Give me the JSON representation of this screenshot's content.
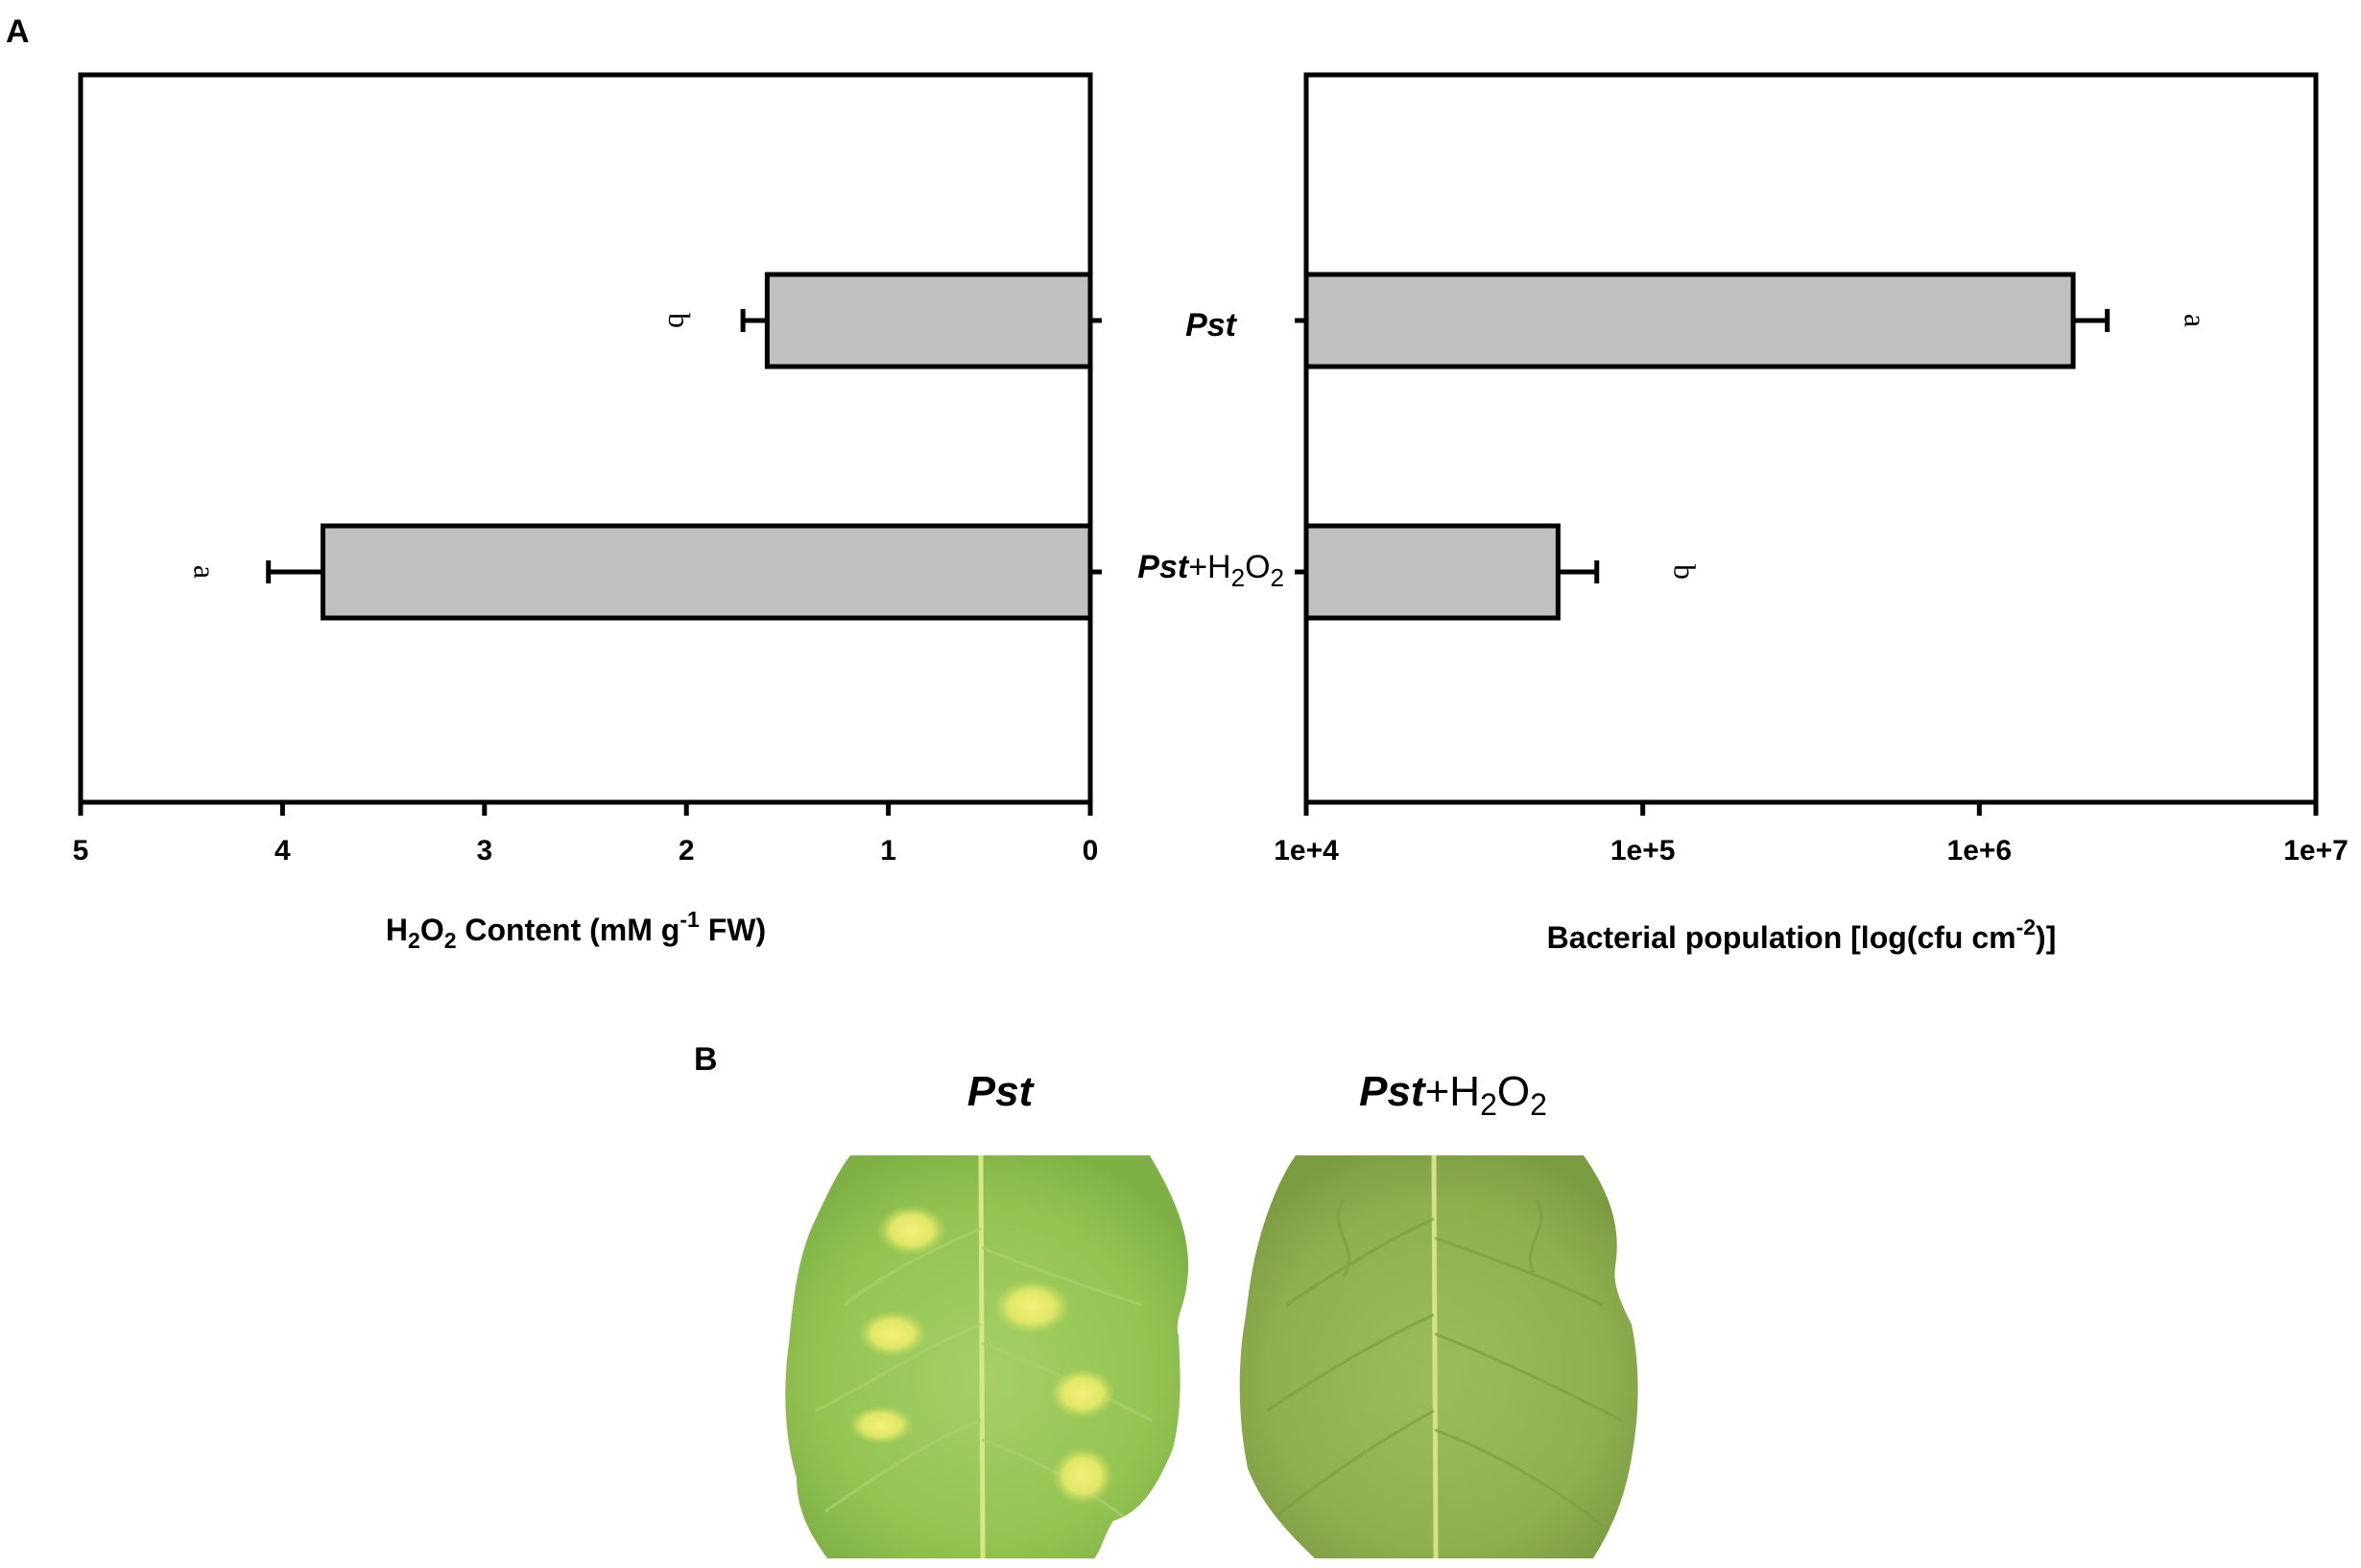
{
  "panel_a_label": "A",
  "panel_b_label": "B",
  "chart_data": [
    {
      "type": "bar",
      "orientation": "horizontal",
      "x_reversed": true,
      "categories": [
        "Pst",
        "Pst+H2O2"
      ],
      "values": [
        1.6,
        3.8
      ],
      "errors": [
        0.12,
        0.27
      ],
      "significance_letters": [
        "b",
        "a"
      ],
      "xlabel": "H2O2 Content (mM g-1 FW)",
      "xlabel_parts": {
        "p1": "H",
        "sub1": "2",
        "p2": "O",
        "sub2": "2",
        "p3": " Content (mM g",
        "sup": "-1",
        "p4": " FW)"
      },
      "xlim": [
        0,
        5
      ],
      "xticks": [
        "5",
        "4",
        "3",
        "2",
        "1",
        "0"
      ],
      "grid": false,
      "bar_color": "#c0c0c0"
    },
    {
      "type": "bar",
      "orientation": "horizontal",
      "x_scale": "log",
      "categories": [
        "Pst",
        "Pst+H2O2"
      ],
      "category_labels": [
        {
          "italic": "Pst",
          "rest": ""
        },
        {
          "italic": "Pst",
          "rest": "+H",
          "sub1": "2",
          "rest2": "O",
          "sub2": "2"
        }
      ],
      "values": [
        1900000,
        56000
      ],
      "error_upper": [
        2400000,
        73000
      ],
      "significance_letters": [
        "a",
        "b"
      ],
      "xlabel": "Bacterial population [log(cfu cm-2)]",
      "xlabel_parts": {
        "p1": "Bacterial population [log(cfu cm",
        "sup": "-2",
        "p2": ")]"
      },
      "xlim": [
        10000,
        10000000
      ],
      "xticks": [
        "1e+4",
        "1e+5",
        "1e+6",
        "1e+7"
      ],
      "grid": false,
      "bar_color": "#c0c0c0"
    }
  ],
  "photos": [
    {
      "title_italic": "Pst",
      "title_rest": "",
      "leaf_color": "#8fc34f"
    },
    {
      "title_italic": "Pst",
      "title_rest": "+H",
      "sub1": "2",
      "rest2": "O",
      "sub2": "2",
      "leaf_color": "#8fb24e"
    }
  ]
}
